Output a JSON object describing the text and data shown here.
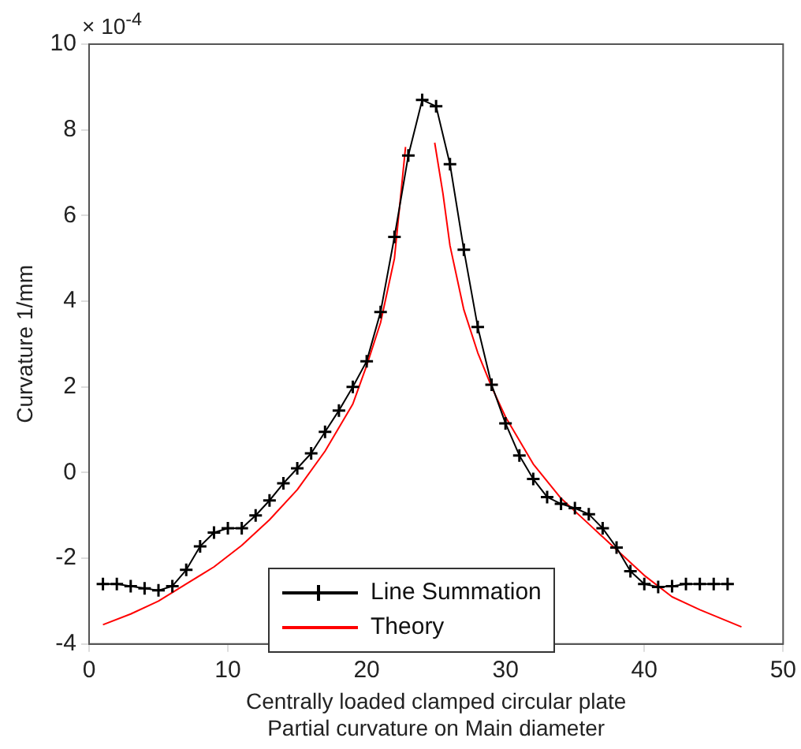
{
  "chart_data": {
    "type": "line",
    "xlabel": "Centrally loaded clamped circular plate\nPartial curvature on Main diameter",
    "ylabel": "Curvature 1/mm",
    "annotations": [
      "× 10$^{-4}$"
    ],
    "xlim": [
      0,
      50
    ],
    "xticks": [
      0,
      10,
      20,
      30,
      40,
      50
    ],
    "ylim": [
      -4,
      10
    ],
    "yticks": [
      -4,
      -2,
      0,
      2,
      4,
      6,
      8,
      10
    ],
    "grid": false,
    "legend": "bottom",
    "series": [
      {
        "name": "Line Summation",
        "color": "#000000",
        "marker": "cross",
        "x": [
          1,
          2,
          3,
          4,
          5,
          6,
          7,
          8,
          9,
          10,
          11,
          12,
          13,
          14,
          15,
          16,
          17,
          18,
          19,
          20,
          21,
          22,
          23,
          24,
          25,
          26,
          27,
          28,
          29,
          30,
          31,
          32,
          33,
          34,
          35,
          36,
          37,
          38,
          39,
          40,
          41,
          42,
          43,
          44,
          45,
          46
        ],
        "values": [
          -2.6,
          -2.6,
          -2.65,
          -2.7,
          -2.75,
          -2.65,
          -2.27,
          -1.72,
          -1.4,
          -1.3,
          -1.3,
          -1.0,
          -0.65,
          -0.25,
          0.1,
          0.45,
          0.95,
          1.45,
          2.0,
          2.6,
          3.75,
          5.5,
          7.4,
          8.7,
          8.55,
          7.2,
          5.2,
          3.4,
          2.05,
          1.15,
          0.4,
          -0.15,
          -0.57,
          -0.73,
          -0.83,
          -0.97,
          -1.3,
          -1.75,
          -2.3,
          -2.6,
          -2.67,
          -2.65,
          -2.6,
          -2.6,
          -2.6,
          -2.6
        ]
      },
      {
        "name": "Theory",
        "color": "#ff0000",
        "marker": "none",
        "x": [
          1,
          3,
          5,
          7,
          9,
          11,
          13,
          15,
          17,
          19,
          20,
          21,
          22,
          22.8,
          24,
          24.9,
          25.5,
          26,
          27,
          28,
          29,
          30,
          32,
          34,
          36,
          38,
          40,
          42,
          44,
          47
        ],
        "values": [
          -3.55,
          -3.3,
          -3.0,
          -2.6,
          -2.2,
          -1.7,
          -1.1,
          -0.4,
          0.5,
          1.6,
          2.5,
          3.5,
          5.0,
          7.6,
          null,
          7.7,
          6.5,
          5.3,
          3.8,
          2.8,
          2.0,
          1.3,
          0.2,
          -0.6,
          -1.2,
          -1.8,
          -2.4,
          -2.9,
          -3.2,
          -3.6
        ]
      }
    ]
  }
}
